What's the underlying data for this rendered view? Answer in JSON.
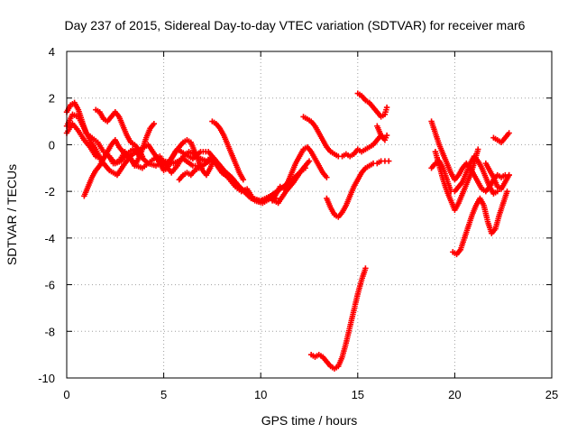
{
  "chart_data": {
    "type": "scatter",
    "title": "Day 237 of 2015, Sidereal Day-to-day VTEC variation (SDTVAR) for receiver mar6",
    "xlabel": "GPS time / hours",
    "ylabel": "SDTVAR / TECUs",
    "xlim": [
      0,
      25
    ],
    "ylim": [
      -10,
      4
    ],
    "xticks": [
      0,
      5,
      10,
      15,
      20,
      25
    ],
    "yticks": [
      -10,
      -8,
      -6,
      -4,
      -2,
      0,
      2,
      4
    ],
    "grid": true,
    "marker": "plus",
    "color": "#ff0000",
    "series": [
      {
        "x": [
          0.0,
          0.2,
          0.4,
          0.6,
          0.8,
          1.0,
          1.3,
          1.6,
          1.9,
          2.2,
          2.5,
          2.8,
          3.1,
          3.4,
          3.8,
          4.2,
          4.6,
          5.0,
          5.5,
          6.0,
          6.5,
          7.0,
          7.5,
          8.0,
          8.5,
          9.0,
          9.5,
          10.0,
          10.5,
          11.0,
          11.5,
          12.0,
          12.3
        ],
        "y": [
          1.4,
          1.7,
          1.8,
          1.5,
          1.0,
          0.5,
          0.3,
          0.1,
          -0.3,
          -0.5,
          -0.8,
          -0.7,
          -0.4,
          -0.2,
          -0.5,
          -0.8,
          -0.9,
          -0.7,
          -0.8,
          -0.6,
          -0.9,
          -0.9,
          -0.6,
          -1.2,
          -1.5,
          -1.9,
          -2.3,
          -2.4,
          -2.2,
          -1.9,
          -1.6,
          -1.2,
          -1.0
        ]
      },
      {
        "x": [
          0.0,
          0.3,
          0.6,
          0.9,
          1.2,
          1.5,
          1.8,
          2.2,
          2.6,
          3.0,
          3.4,
          3.8,
          4.2,
          4.6,
          5.0,
          5.3,
          5.7,
          6.1,
          6.5,
          6.9,
          7.3,
          7.7,
          8.1,
          8.5,
          8.9,
          9.3,
          9.7,
          10.1,
          10.5,
          10.9,
          11.3,
          11.7,
          12.1,
          12.5
        ],
        "y": [
          0.8,
          1.3,
          1.2,
          0.7,
          0.2,
          -0.2,
          -0.7,
          -1.1,
          -1.3,
          -0.8,
          -0.4,
          -0.2,
          0.0,
          -0.5,
          -0.9,
          -0.7,
          -0.2,
          -0.4,
          -0.6,
          -0.3,
          -0.3,
          -0.7,
          -1.1,
          -1.4,
          -1.8,
          -2.1,
          -2.4,
          -2.5,
          -2.3,
          -2.5,
          -2.0,
          -1.6,
          -1.1,
          -0.7
        ]
      },
      {
        "x": [
          0.0,
          0.3,
          0.6,
          0.9,
          1.2,
          1.5,
          1.8,
          2.1,
          2.4,
          2.7,
          3.0,
          3.3,
          3.6,
          3.9,
          4.2,
          4.5,
          4.8,
          5.1,
          5.4,
          5.7,
          6.0,
          6.3,
          6.6,
          6.9,
          7.2,
          7.5,
          7.8,
          8.1,
          8.4,
          8.7,
          9.0,
          9.3,
          9.6,
          9.9,
          10.2,
          10.5,
          10.8
        ],
        "y": [
          0.5,
          0.9,
          0.6,
          0.2,
          -0.1,
          -0.5,
          -0.6,
          -0.4,
          -0.8,
          -0.7,
          -0.3,
          -0.6,
          -0.9,
          -1.0,
          -0.8,
          -0.6,
          -0.5,
          -0.9,
          -1.2,
          -0.9,
          -0.5,
          -0.3,
          -0.4,
          -0.6,
          -0.7,
          -0.5,
          -0.8,
          -1.1,
          -1.5,
          -1.8,
          -2.0,
          -1.9,
          -2.3,
          -2.4,
          -2.4,
          -2.2,
          -2.3
        ]
      },
      {
        "x": [
          0.9,
          1.1,
          1.3,
          1.5,
          1.7,
          1.9,
          2.1,
          2.3,
          2.5,
          2.7,
          2.9,
          3.1,
          3.3,
          3.5,
          3.7,
          3.9,
          4.1,
          4.3,
          4.5
        ],
        "y": [
          -2.2,
          -1.8,
          -1.4,
          -1.1,
          -0.9,
          -0.6,
          -0.3,
          0.0,
          0.2,
          -0.1,
          -0.3,
          -0.5,
          -0.6,
          -0.9,
          -0.6,
          -0.2,
          0.3,
          0.7,
          0.9
        ]
      },
      {
        "x": [
          1.5,
          1.7,
          1.9,
          2.1,
          2.3,
          2.5,
          2.7,
          2.9,
          3.1,
          3.3,
          3.5,
          3.7,
          3.9
        ],
        "y": [
          1.5,
          1.4,
          1.1,
          1.0,
          1.2,
          1.4,
          1.2,
          0.8,
          0.4,
          0.1,
          0.0,
          -0.2,
          -0.5
        ]
      },
      {
        "x": [
          4.6,
          4.8,
          5.0,
          5.2,
          5.4,
          5.6,
          5.8,
          6.0,
          6.2,
          6.4,
          6.6,
          6.8,
          7.0,
          7.2,
          7.4,
          7.6
        ],
        "y": [
          -0.5,
          -0.8,
          -1.1,
          -1.0,
          -0.6,
          -0.3,
          -0.1,
          0.1,
          0.2,
          0.1,
          -0.3,
          -0.7,
          -1.1,
          -1.3,
          -1.0,
          -0.6
        ]
      },
      {
        "x": [
          5.8,
          6.0,
          6.2,
          6.4,
          6.6,
          6.8,
          7.0
        ],
        "y": [
          -1.5,
          -1.3,
          -1.2,
          -1.3,
          -1.1,
          -1.0,
          -0.9
        ]
      },
      {
        "x": [
          7.5,
          7.7,
          7.9,
          8.1,
          8.3,
          8.5,
          8.7,
          8.9,
          9.1
        ],
        "y": [
          1.0,
          0.9,
          0.7,
          0.4,
          0.0,
          -0.4,
          -0.8,
          -1.2,
          -1.5
        ]
      },
      {
        "x": [
          12.2,
          12.4,
          12.6,
          12.8,
          13.0,
          13.2,
          13.4,
          13.6,
          13.8,
          14.0,
          14.2,
          14.4,
          14.6,
          14.8,
          15.0,
          15.2,
          15.4,
          15.6,
          15.8,
          16.0,
          16.2
        ],
        "y": [
          1.2,
          1.1,
          1.0,
          0.8,
          0.5,
          0.2,
          -0.1,
          -0.3,
          -0.4,
          -0.5,
          -0.5,
          -0.4,
          -0.5,
          -0.4,
          -0.2,
          -0.3,
          -0.2,
          -0.1,
          0.0,
          0.2,
          0.4
        ]
      },
      {
        "x": [
          10.6,
          10.8,
          11.0,
          11.2,
          11.4,
          11.6,
          11.8,
          12.0,
          12.2,
          12.4,
          12.6,
          12.8,
          13.0,
          13.2,
          13.4
        ],
        "y": [
          -2.4,
          -2.1,
          -1.8,
          -1.9,
          -1.6,
          -1.2,
          -0.8,
          -0.5,
          -0.2,
          -0.1,
          -0.3,
          -0.6,
          -0.9,
          -1.2,
          -1.4
        ]
      },
      {
        "x": [
          13.4,
          13.6,
          13.8,
          14.0,
          14.2,
          14.4,
          14.6,
          14.8,
          15.0,
          15.2,
          15.4,
          15.6,
          15.8,
          16.0,
          16.2,
          16.4,
          16.6
        ],
        "y": [
          -2.3,
          -2.7,
          -3.0,
          -3.1,
          -2.9,
          -2.6,
          -2.2,
          -1.8,
          -1.5,
          -1.2,
          -1.0,
          -0.9,
          -0.8,
          -0.8,
          -0.7,
          -0.7,
          -0.7
        ]
      },
      {
        "x": [
          12.6,
          12.8,
          13.0,
          13.2,
          13.4,
          13.6,
          13.8,
          14.0,
          14.2,
          14.4,
          14.6,
          14.8,
          15.0,
          15.2,
          15.4
        ],
        "y": [
          -9.0,
          -9.1,
          -9.0,
          -9.1,
          -9.3,
          -9.5,
          -9.6,
          -9.5,
          -9.1,
          -8.5,
          -7.8,
          -7.1,
          -6.4,
          -5.8,
          -5.3
        ]
      },
      {
        "x": [
          15.0,
          15.2,
          15.4,
          15.6,
          15.8,
          16.0,
          16.2,
          16.4,
          16.5
        ],
        "y": [
          2.2,
          2.1,
          1.9,
          1.8,
          1.6,
          1.4,
          1.2,
          1.3,
          1.6
        ]
      },
      {
        "x": [
          16.0,
          16.2,
          16.4,
          16.5
        ],
        "y": [
          0.8,
          0.4,
          0.2,
          0.4
        ]
      },
      {
        "x": [
          18.8,
          19.0,
          19.2,
          19.4,
          19.6,
          19.8,
          20.0,
          20.2,
          20.4,
          20.6,
          20.8,
          21.0,
          21.2,
          21.4,
          21.6,
          21.8,
          22.0,
          22.2,
          22.4,
          22.6,
          22.8
        ],
        "y": [
          1.0,
          0.5,
          0.0,
          -0.4,
          -0.8,
          -1.2,
          -1.5,
          -1.3,
          -1.0,
          -0.8,
          -1.0,
          -1.3,
          -1.6,
          -1.9,
          -2.0,
          -1.8,
          -1.5,
          -1.3,
          -1.4,
          -1.3,
          -1.3
        ]
      },
      {
        "x": [
          18.8,
          19.0,
          19.2,
          19.4,
          19.6,
          19.8,
          20.0,
          20.2,
          20.4,
          20.6,
          20.8,
          21.0,
          21.2,
          21.4,
          21.6,
          21.8,
          22.0,
          22.2
        ],
        "y": [
          -1.0,
          -0.8,
          -0.7,
          -1.0,
          -1.5,
          -2.0,
          -2.0,
          -1.8,
          -1.6,
          -1.2,
          -0.8,
          -0.5,
          -0.7,
          -1.0,
          -1.4,
          -1.8,
          -2.1,
          -2.0
        ]
      },
      {
        "x": [
          19.0,
          19.2,
          19.4,
          19.6,
          19.8,
          20.0,
          20.2,
          20.4,
          20.6,
          20.8,
          21.0,
          21.2
        ],
        "y": [
          -0.3,
          -0.9,
          -1.5,
          -2.0,
          -2.4,
          -2.8,
          -2.5,
          -2.1,
          -1.7,
          -1.3,
          -0.8,
          -0.2
        ]
      },
      {
        "x": [
          19.9,
          20.1,
          20.3,
          20.5,
          20.7,
          20.9,
          21.1,
          21.3,
          21.5,
          21.7,
          21.9,
          22.1,
          22.3,
          22.5,
          22.7
        ],
        "y": [
          -4.6,
          -4.7,
          -4.5,
          -4.0,
          -3.5,
          -3.0,
          -2.6,
          -2.3,
          -2.6,
          -3.3,
          -3.8,
          -3.6,
          -3.0,
          -2.5,
          -2.0
        ]
      },
      {
        "x": [
          21.6,
          21.8,
          22.0,
          22.2,
          22.4,
          22.6,
          22.8
        ],
        "y": [
          -0.8,
          -1.1,
          -1.4,
          -1.8,
          -1.9,
          -1.6,
          -1.3
        ]
      },
      {
        "x": [
          22.0,
          22.2,
          22.4,
          22.6,
          22.8
        ],
        "y": [
          0.3,
          0.2,
          0.1,
          0.3,
          0.5
        ]
      }
    ]
  }
}
